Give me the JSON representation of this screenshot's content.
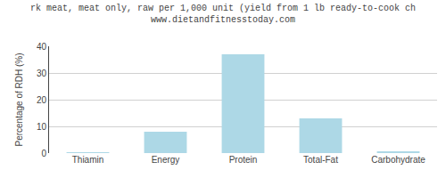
{
  "chart_data": {
    "type": "bar",
    "title": "rk meat, meat only, raw per 1,000 unit (yield from 1 lb ready-to-cook ch",
    "subtitle": "www.dietandfitnesstoday.com",
    "ylabel": "Percentage of RDH (%)",
    "categories": [
      "Thiamin",
      "Energy",
      "Protein",
      "Total-Fat",
      "Carbohydrate"
    ],
    "values": [
      0.3,
      8.0,
      37.0,
      13.0,
      0.5
    ],
    "color": "#add8e6",
    "ylim": [
      0,
      40
    ],
    "yticks": [
      0,
      10,
      20,
      30,
      40
    ],
    "grid": true
  }
}
